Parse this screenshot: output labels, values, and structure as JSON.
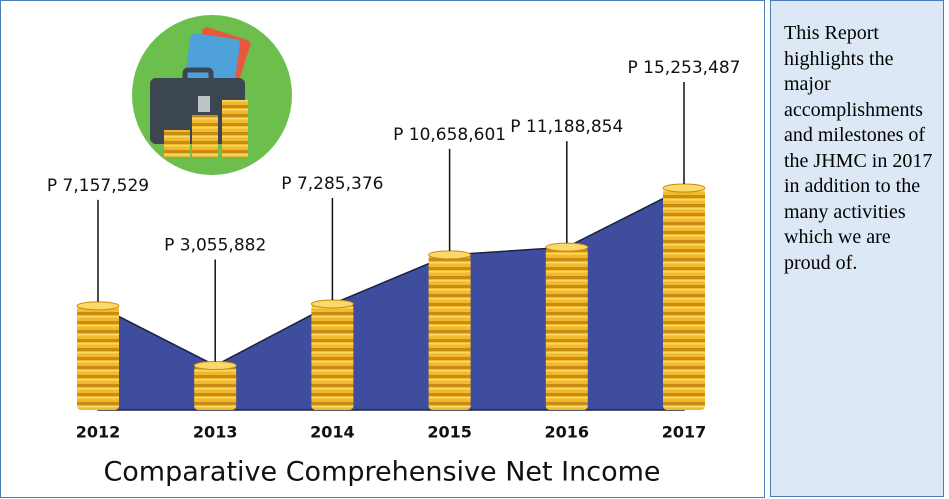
{
  "chart_data": {
    "type": "coin-area",
    "title": "Comparative Comprehensive Net Income",
    "categories": [
      "2012",
      "2013",
      "2014",
      "2015",
      "2016",
      "2017"
    ],
    "values": [
      7157529,
      3055882,
      7285376,
      10658601,
      11188854,
      15253487
    ],
    "value_labels": [
      "P 7,157,529",
      "P 3,055,882",
      "P 7,285,376",
      "P 10,658,601",
      "P 11,188,854",
      "P 15,253,487"
    ],
    "color": "#3e4d9e",
    "coin_color": "#f2b92c"
  },
  "side_text": "This Report highlights the major accomplishments and milestones of the JHMC in 2017 in addition to the many activities which we are proud of."
}
